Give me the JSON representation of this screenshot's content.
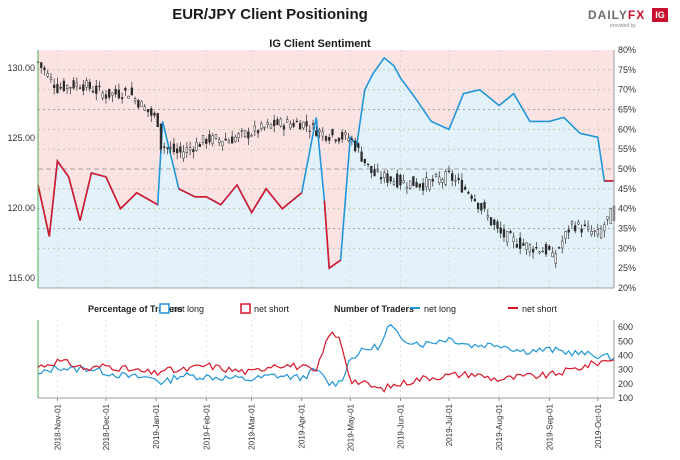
{
  "title": "EUR/JPY Client Positioning",
  "logo": {
    "brand_a": "DAILY",
    "brand_b": "FX",
    "tagline": "provided by",
    "badge": "IG"
  },
  "subtitle": "IG Client Sentiment",
  "legend": {
    "pct_title": "Percentage of Traders",
    "pct_long": "net long",
    "pct_short": "net short",
    "num_title": "Number of Traders",
    "num_long": "net long",
    "num_short": "net short"
  },
  "colors": {
    "long": "#2196d8",
    "short": "#d8172a",
    "long_fill": "#e3f1fb",
    "short_fill": "#fbe3e4",
    "candle": "#2b2b2b",
    "up_candle": "#ffffff"
  },
  "chart_data": [
    {
      "type": "line",
      "title": "IG Client Sentiment",
      "x_range": [
        "2018-10-20",
        "2019-10-11"
      ],
      "price": {
        "name": "EUR/JPY",
        "ylim": [
          114.3,
          131.3
        ],
        "y_ticks": [
          "130.00",
          "125.00",
          "120.00",
          "115.00"
        ],
        "dates": [
          "2018-10-20",
          "2018-11-01",
          "2018-11-15",
          "2018-12-01",
          "2018-12-15",
          "2019-01-02",
          "2019-01-03",
          "2019-01-04",
          "2019-01-15",
          "2019-02-01",
          "2019-02-15",
          "2019-03-01",
          "2019-03-15",
          "2019-04-01",
          "2019-04-15",
          "2019-05-01",
          "2019-05-15",
          "2019-06-01",
          "2019-06-15",
          "2019-07-01",
          "2019-07-15",
          "2019-08-01",
          "2019-08-15",
          "2019-09-01",
          "2019-09-03",
          "2019-09-15",
          "2019-10-01",
          "2019-10-11"
        ],
        "values": [
          130.4,
          128.6,
          128.9,
          128.1,
          128.3,
          126.2,
          122.0,
          124.5,
          123.9,
          124.9,
          124.9,
          125.4,
          126.0,
          126.1,
          125.3,
          125.0,
          122.4,
          121.9,
          121.7,
          122.3,
          121.0,
          118.2,
          117.4,
          116.9,
          116.4,
          118.9,
          118.1,
          119.9
        ]
      },
      "net_long_pct": {
        "ylim": [
          20,
          80
        ],
        "y_ticks": [
          "80%",
          "75%",
          "70%",
          "65%",
          "60%",
          "55%",
          "50%",
          "45%",
          "40%",
          "35%",
          "30%",
          "25%",
          "20%"
        ],
        "dates": [
          "2018-10-20",
          "2018-10-27",
          "2018-11-01",
          "2018-11-08",
          "2018-11-15",
          "2018-11-22",
          "2018-12-01",
          "2018-12-10",
          "2018-12-20",
          "2019-01-02",
          "2019-01-05",
          "2019-01-15",
          "2019-01-25",
          "2019-02-01",
          "2019-02-10",
          "2019-02-20",
          "2019-03-01",
          "2019-03-10",
          "2019-03-20",
          "2019-04-01",
          "2019-04-10",
          "2019-04-15",
          "2019-04-18",
          "2019-04-25",
          "2019-05-01",
          "2019-05-05",
          "2019-05-10",
          "2019-05-15",
          "2019-05-22",
          "2019-05-28",
          "2019-06-01",
          "2019-06-10",
          "2019-06-20",
          "2019-07-01",
          "2019-07-10",
          "2019-07-20",
          "2019-08-01",
          "2019-08-10",
          "2019-08-20",
          "2019-09-01",
          "2019-09-10",
          "2019-09-20",
          "2019-10-01",
          "2019-10-05",
          "2019-10-11"
        ],
        "values": [
          46,
          33,
          52,
          48,
          37,
          49,
          48,
          40,
          44,
          41,
          62,
          45,
          43,
          43,
          41,
          46,
          39,
          45,
          40,
          44,
          63,
          42,
          25,
          27,
          58,
          56,
          70,
          74,
          78,
          76,
          73,
          68,
          62,
          60,
          69,
          70,
          66,
          69,
          62,
          62,
          63,
          59,
          58,
          47,
          47
        ]
      },
      "net_short_pct": {
        "dates": [
          "2018-10-20",
          "2018-10-27",
          "2018-11-01",
          "2018-11-08",
          "2018-11-15",
          "2018-11-22",
          "2018-12-01",
          "2018-12-10",
          "2018-12-20",
          "2019-01-02",
          "2019-01-05",
          "2019-01-15",
          "2019-01-25",
          "2019-02-01",
          "2019-02-10",
          "2019-02-20",
          "2019-03-01",
          "2019-03-10",
          "2019-03-20",
          "2019-04-01",
          "2019-04-10",
          "2019-04-15",
          "2019-04-18",
          "2019-04-25",
          "2019-05-01",
          "2019-05-05",
          "2019-05-10",
          "2019-05-15",
          "2019-05-22",
          "2019-05-28",
          "2019-06-01",
          "2019-06-10",
          "2019-06-20",
          "2019-07-01",
          "2019-07-10",
          "2019-07-20",
          "2019-08-01",
          "2019-08-10",
          "2019-08-20",
          "2019-09-01",
          "2019-09-10",
          "2019-09-20",
          "2019-10-01",
          "2019-10-05",
          "2019-10-11"
        ],
        "values": [
          54,
          67,
          48,
          52,
          63,
          51,
          52,
          60,
          56,
          59,
          38,
          55,
          57,
          57,
          59,
          54,
          61,
          55,
          60,
          56,
          37,
          58,
          75,
          73,
          42,
          44,
          30,
          26,
          22,
          24,
          27,
          32,
          38,
          40,
          31,
          30,
          34,
          31,
          38,
          38,
          37,
          41,
          42,
          53,
          53
        ]
      },
      "pct_y2_range": [
        20,
        80
      ]
    },
    {
      "type": "line",
      "title": "Number of Traders",
      "x_range": [
        "2018-10-20",
        "2019-10-11"
      ],
      "ylim": [
        100,
        650
      ],
      "y_ticks": [
        "600",
        "500",
        "400",
        "300",
        "200",
        "100"
      ],
      "x_ticks": [
        "2018-Nov-01",
        "2018-Dec-01",
        "2019-Jan-01",
        "2019-Feb-01",
        "2019-Mar-01",
        "2019-Apr-01",
        "2019-May-01",
        "2019-Jun-01",
        "2019-Jul-01",
        "2019-Aug-01",
        "2019-Sep-01",
        "2019-Oct-01"
      ],
      "series": [
        {
          "name": "net long",
          "dates": [
            "2018-10-20",
            "2018-11-01",
            "2018-11-10",
            "2018-11-20",
            "2018-12-01",
            "2018-12-15",
            "2019-01-01",
            "2019-01-05",
            "2019-01-15",
            "2019-02-01",
            "2019-02-15",
            "2019-03-01",
            "2019-03-15",
            "2019-04-01",
            "2019-04-10",
            "2019-04-18",
            "2019-04-25",
            "2019-05-01",
            "2019-05-10",
            "2019-05-20",
            "2019-05-25",
            "2019-06-01",
            "2019-06-15",
            "2019-07-01",
            "2019-07-15",
            "2019-08-01",
            "2019-08-15",
            "2019-09-01",
            "2019-09-15",
            "2019-10-01",
            "2019-10-11"
          ],
          "values": [
            260,
            320,
            300,
            310,
            280,
            250,
            240,
            200,
            260,
            250,
            240,
            230,
            260,
            240,
            300,
            200,
            210,
            380,
            440,
            470,
            620,
            520,
            480,
            520,
            470,
            480,
            430,
            440,
            420,
            400,
            380
          ]
        },
        {
          "name": "net short",
          "dates": [
            "2018-10-20",
            "2018-11-01",
            "2018-11-10",
            "2018-11-20",
            "2018-12-01",
            "2018-12-15",
            "2019-01-01",
            "2019-01-05",
            "2019-01-15",
            "2019-02-01",
            "2019-02-15",
            "2019-03-01",
            "2019-03-15",
            "2019-04-01",
            "2019-04-10",
            "2019-04-18",
            "2019-04-25",
            "2019-05-01",
            "2019-05-10",
            "2019-05-20",
            "2019-05-25",
            "2019-06-01",
            "2019-06-15",
            "2019-07-01",
            "2019-07-15",
            "2019-08-01",
            "2019-08-15",
            "2019-09-01",
            "2019-09-15",
            "2019-10-01",
            "2019-10-11"
          ],
          "values": [
            320,
            360,
            340,
            300,
            330,
            300,
            270,
            300,
            290,
            330,
            300,
            280,
            340,
            320,
            280,
            560,
            510,
            230,
            200,
            160,
            180,
            200,
            240,
            260,
            270,
            230,
            250,
            260,
            300,
            350,
            380
          ]
        }
      ]
    }
  ]
}
